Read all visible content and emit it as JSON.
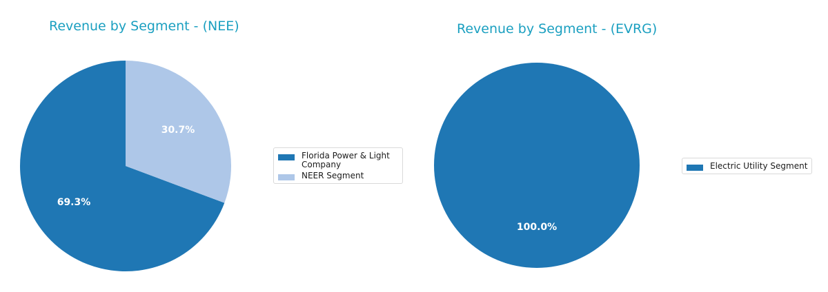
{
  "chart_data": [
    {
      "type": "pie",
      "title": "Revenue by Segment - (NEE)",
      "categories": [
        "Florida Power & Light Company",
        "NEER Segment"
      ],
      "values": [
        69.3,
        30.7
      ],
      "labels": [
        "69.3%",
        "30.7%"
      ],
      "colors": [
        "#1f77b4",
        "#aec7e8"
      ],
      "legend_position": "right"
    },
    {
      "type": "pie",
      "title": "Revenue by Segment - (EVRG)",
      "categories": [
        "Electric Utility Segment"
      ],
      "values": [
        100.0
      ],
      "labels": [
        "100.0%"
      ],
      "colors": [
        "#1f77b4"
      ],
      "legend_position": "right"
    }
  ],
  "nee": {
    "title": "Revenue by Segment - (NEE)",
    "slices": [
      {
        "label": "Florida Power & Light Company",
        "pct": "69.3%",
        "color": "#1f77b4"
      },
      {
        "label": "NEER Segment",
        "pct": "30.7%",
        "color": "#aec7e8"
      }
    ]
  },
  "evrg": {
    "title": "Revenue by Segment - (EVRG)",
    "slices": [
      {
        "label": "Electric Utility Segment",
        "pct": "100.0%",
        "color": "#1f77b4"
      }
    ]
  },
  "colors": {
    "title": "#1a9fc0",
    "primary": "#1f77b4",
    "secondary": "#aec7e8"
  }
}
